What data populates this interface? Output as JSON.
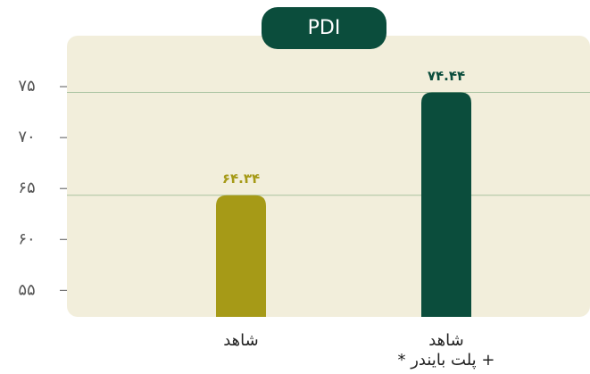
{
  "chart_data": {
    "type": "bar",
    "title": "PDI",
    "categories": [
      [
        "شاهد"
      ],
      [
        "شاهد",
        "+ پلت بایندر *"
      ]
    ],
    "values": [
      64.34,
      74.44
    ],
    "value_labels": [
      "۶۴.۳۴",
      "۷۴.۴۴"
    ],
    "colors": [
      "#a69a17",
      "#0b4d3c"
    ],
    "ylim": [
      52.4,
      80
    ],
    "yticks": [
      {
        "value": 55,
        "label": "۵۵"
      },
      {
        "value": 60,
        "label": "۶۰"
      },
      {
        "value": 65,
        "label": "۶۵"
      },
      {
        "value": 70,
        "label": "۷۰"
      },
      {
        "value": 75,
        "label": "۷۵"
      }
    ]
  }
}
